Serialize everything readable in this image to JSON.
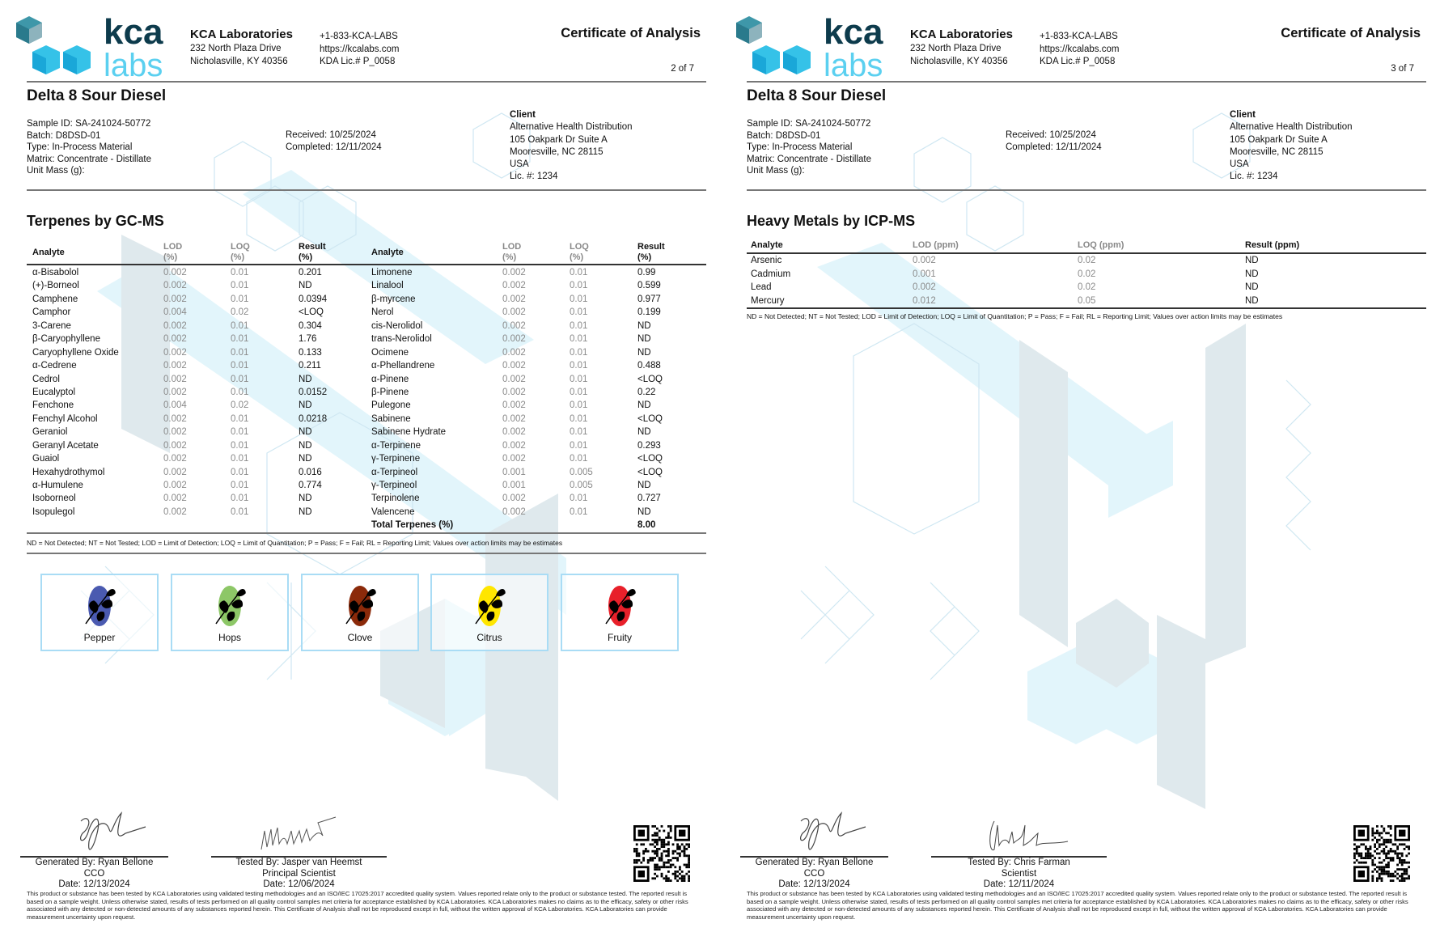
{
  "header": {
    "logo_text_top": "kca",
    "logo_text_bottom": "labs",
    "lab_name": "KCA Laboratories",
    "address_line1": "232 North Plaza Drive",
    "address_line2": "Nicholasville, KY 40356",
    "phone": "+1-833-KCA-LABS",
    "website": "https://kcalabs.com",
    "license": "KDA Lic.# P_0058",
    "document_title": "Certificate of Analysis"
  },
  "sample": {
    "product_name": "Delta 8 Sour Diesel",
    "sample_id": "Sample ID: SA-241024-50772",
    "batch": "Batch: D8DSD-01",
    "type": "Type: In-Process Material",
    "matrix": "Matrix: Concentrate - Distillate",
    "unit_mass": "Unit Mass (g):",
    "received": "Received: 10/25/2024",
    "completed": "Completed: 12/11/2024",
    "client_heading": "Client",
    "client_name": "Alternative Health Distribution",
    "client_address1": "105 Oakpark Dr Suite A",
    "client_address2": "Mooresville, NC 28115",
    "client_country": "USA",
    "client_license": "Lic. #: 1234"
  },
  "footnote": "ND = Not Detected; NT = Not Tested; LOD = Limit of Detection; LOQ = Limit of Quantitation; P = Pass; F = Fail; RL = Reporting Limit; Values over action limits may be estimates",
  "disclaimer": "This product or substance has been tested by KCA Laboratories using validated testing methodologies and an ISO/IEC 17025:2017 accredited quality system. Values reported relate only to the product or substance tested. The reported result is based on a sample weight. Unless otherwise stated, results of tests performed on all quality control samples met criteria for acceptance established by KCA Laboratories. KCA Laboratories makes no claims as to the efficacy, safety or other risks associated with any detected or non-detected amounts of any substances reported herein. This Certificate of Analysis shall not be reproduced except in full, without the written approval of KCA Laboratories. KCA Laboratories can provide measurement uncertainty upon request.",
  "brand_colors": {
    "dark_teal": "#0d3b4c",
    "light_blue": "#5bd0f0",
    "accent_border": "#a9dcf5"
  },
  "page2": {
    "page_number": "2 of 7",
    "section_title": "Terpenes by GC-MS",
    "columns": {
      "analyte": "Analyte",
      "lod": "LOD",
      "lod_unit": "(%)",
      "loq": "LOQ",
      "loq_unit": "(%)",
      "result": "Result",
      "result_unit": "(%)"
    },
    "rows_left": [
      {
        "analyte": "α-Bisabolol",
        "lod": "0.002",
        "loq": "0.01",
        "result": "0.201"
      },
      {
        "analyte": "(+)-Borneol",
        "lod": "0.002",
        "loq": "0.01",
        "result": "ND"
      },
      {
        "analyte": "Camphene",
        "lod": "0.002",
        "loq": "0.01",
        "result": "0.0394"
      },
      {
        "analyte": "Camphor",
        "lod": "0.004",
        "loq": "0.02",
        "result": "<LOQ"
      },
      {
        "analyte": "3-Carene",
        "lod": "0.002",
        "loq": "0.01",
        "result": "0.304"
      },
      {
        "analyte": "β-Caryophyllene",
        "lod": "0.002",
        "loq": "0.01",
        "result": "1.76"
      },
      {
        "analyte": "Caryophyllene Oxide",
        "lod": "0.002",
        "loq": "0.01",
        "result": "0.133"
      },
      {
        "analyte": "α-Cedrene",
        "lod": "0.002",
        "loq": "0.01",
        "result": "0.211"
      },
      {
        "analyte": "Cedrol",
        "lod": "0.002",
        "loq": "0.01",
        "result": "ND"
      },
      {
        "analyte": "Eucalyptol",
        "lod": "0.002",
        "loq": "0.01",
        "result": "0.0152"
      },
      {
        "analyte": "Fenchone",
        "lod": "0.004",
        "loq": "0.02",
        "result": "ND"
      },
      {
        "analyte": "Fenchyl Alcohol",
        "lod": "0.002",
        "loq": "0.01",
        "result": "0.0218"
      },
      {
        "analyte": "Geraniol",
        "lod": "0.002",
        "loq": "0.01",
        "result": "ND"
      },
      {
        "analyte": "Geranyl Acetate",
        "lod": "0.002",
        "loq": "0.01",
        "result": "ND"
      },
      {
        "analyte": "Guaiol",
        "lod": "0.002",
        "loq": "0.01",
        "result": "ND"
      },
      {
        "analyte": "Hexahydrothymol",
        "lod": "0.002",
        "loq": "0.01",
        "result": "0.016"
      },
      {
        "analyte": "α-Humulene",
        "lod": "0.002",
        "loq": "0.01",
        "result": "0.774"
      },
      {
        "analyte": "Isoborneol",
        "lod": "0.002",
        "loq": "0.01",
        "result": "ND"
      },
      {
        "analyte": "Isopulegol",
        "lod": "0.002",
        "loq": "0.01",
        "result": "ND"
      }
    ],
    "rows_right": [
      {
        "analyte": "Limonene",
        "lod": "0.002",
        "loq": "0.01",
        "result": "0.99"
      },
      {
        "analyte": "Linalool",
        "lod": "0.002",
        "loq": "0.01",
        "result": "0.599"
      },
      {
        "analyte": "β-myrcene",
        "lod": "0.002",
        "loq": "0.01",
        "result": "0.977"
      },
      {
        "analyte": "Nerol",
        "lod": "0.002",
        "loq": "0.01",
        "result": "0.199"
      },
      {
        "analyte": "cis-Nerolidol",
        "lod": "0.002",
        "loq": "0.01",
        "result": "ND"
      },
      {
        "analyte": "trans-Nerolidol",
        "lod": "0.002",
        "loq": "0.01",
        "result": "ND"
      },
      {
        "analyte": "Ocimene",
        "lod": "0.002",
        "loq": "0.01",
        "result": "ND"
      },
      {
        "analyte": "α-Phellandrene",
        "lod": "0.002",
        "loq": "0.01",
        "result": "0.488"
      },
      {
        "analyte": "α-Pinene",
        "lod": "0.002",
        "loq": "0.01",
        "result": "<LOQ"
      },
      {
        "analyte": "β-Pinene",
        "lod": "0.002",
        "loq": "0.01",
        "result": "0.22"
      },
      {
        "analyte": "Pulegone",
        "lod": "0.002",
        "loq": "0.01",
        "result": "ND"
      },
      {
        "analyte": "Sabinene",
        "lod": "0.002",
        "loq": "0.01",
        "result": "<LOQ"
      },
      {
        "analyte": "Sabinene Hydrate",
        "lod": "0.002",
        "loq": "0.01",
        "result": "ND"
      },
      {
        "analyte": "α-Terpinene",
        "lod": "0.002",
        "loq": "0.01",
        "result": "0.293"
      },
      {
        "analyte": "γ-Terpinene",
        "lod": "0.002",
        "loq": "0.01",
        "result": "<LOQ"
      },
      {
        "analyte": "α-Terpineol",
        "lod": "0.001",
        "loq": "0.005",
        "result": "<LOQ"
      },
      {
        "analyte": "γ-Terpineol",
        "lod": "0.001",
        "loq": "0.005",
        "result": "ND"
      },
      {
        "analyte": "Terpinolene",
        "lod": "0.002",
        "loq": "0.01",
        "result": "0.727"
      },
      {
        "analyte": "Valencene",
        "lod": "0.002",
        "loq": "0.01",
        "result": "ND"
      }
    ],
    "total_label": "Total Terpenes (%)",
    "total_value": "8.00",
    "flavors": [
      {
        "label": "Pepper",
        "icon": "pepper-icon",
        "color": "#4a5ab0"
      },
      {
        "label": "Hops",
        "icon": "hops-icon",
        "color": "#8dc767"
      },
      {
        "label": "Clove",
        "icon": "clove-icon",
        "color": "#8b2a0a"
      },
      {
        "label": "Citrus",
        "icon": "citrus-icon",
        "color": "#ffe600"
      },
      {
        "label": "Fruity",
        "icon": "fruity-icon",
        "color": "#e8202a"
      }
    ],
    "signatures": {
      "generated_by": "Generated By: Ryan Bellone",
      "generated_title": "CCO",
      "generated_date": "Date: 12/13/2024",
      "tested_by": "Tested By: Jasper van Heemst",
      "tested_title": "Principal Scientist",
      "tested_date": "Date: 12/06/2024"
    }
  },
  "page3": {
    "page_number": "3 of 7",
    "section_title": "Heavy Metals by ICP-MS",
    "columns": {
      "analyte": "Analyte",
      "lod": "LOD (ppm)",
      "loq": "LOQ (ppm)",
      "result": "Result (ppm)"
    },
    "rows": [
      {
        "analyte": "Arsenic",
        "lod": "0.002",
        "loq": "0.02",
        "result": "ND"
      },
      {
        "analyte": "Cadmium",
        "lod": "0.001",
        "loq": "0.02",
        "result": "ND"
      },
      {
        "analyte": "Lead",
        "lod": "0.002",
        "loq": "0.02",
        "result": "ND"
      },
      {
        "analyte": "Mercury",
        "lod": "0.012",
        "loq": "0.05",
        "result": "ND"
      }
    ],
    "signatures": {
      "generated_by": "Generated By: Ryan Bellone",
      "generated_title": "CCO",
      "generated_date": "Date: 12/13/2024",
      "tested_by": "Tested By: Chris Farman",
      "tested_title": "Scientist",
      "tested_date": "Date: 12/11/2024"
    }
  }
}
